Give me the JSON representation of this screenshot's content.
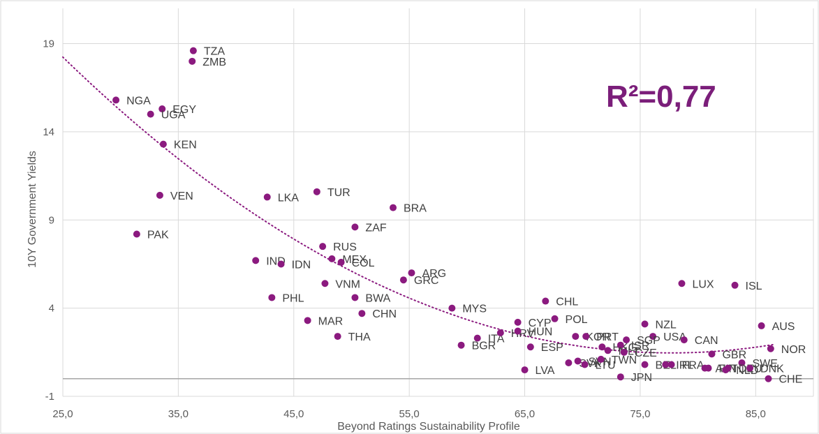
{
  "colors": {
    "marker": "#8b1a7f",
    "trendline": "#8b1a7f",
    "annotation": "#7b1e7a",
    "grid": "#d9d9d9"
  },
  "chart_data": {
    "type": "scatter",
    "xlabel": "Beyond Ratings Sustainability Profile",
    "ylabel": "10Y Government Yields",
    "xlim": [
      25,
      90
    ],
    "ylim": [
      -1,
      21
    ],
    "x_ticks": [
      25,
      35,
      45,
      55,
      65,
      75,
      85
    ],
    "x_tick_labels": [
      "25,0",
      "35,0",
      "45,0",
      "55,0",
      "65,0",
      "75,0",
      "85,0"
    ],
    "y_ticks": [
      -1,
      4,
      9,
      14,
      19
    ],
    "y_tick_labels": [
      "-1",
      "4",
      "9",
      "14",
      "19"
    ],
    "grid": true,
    "zero_line": true,
    "annotation": "R²=0,77",
    "trendline": {
      "type": "polynomial",
      "color": "#8b1a7f",
      "style": "dotted"
    },
    "points": [
      {
        "label": "TZA",
        "x": 36.3,
        "y": 18.6
      },
      {
        "label": "ZMB",
        "x": 36.2,
        "y": 18.0
      },
      {
        "label": "NGA",
        "x": 29.6,
        "y": 15.8
      },
      {
        "label": "EGY",
        "x": 33.6,
        "y": 15.3
      },
      {
        "label": "UGA",
        "x": 32.6,
        "y": 15.0
      },
      {
        "label": "KEN",
        "x": 33.7,
        "y": 13.3
      },
      {
        "label": "VEN",
        "x": 33.4,
        "y": 10.4
      },
      {
        "label": "PAK",
        "x": 31.4,
        "y": 8.2
      },
      {
        "label": "LKA",
        "x": 42.7,
        "y": 10.3
      },
      {
        "label": "TUR",
        "x": 47.0,
        "y": 10.6
      },
      {
        "label": "BRA",
        "x": 53.6,
        "y": 9.7
      },
      {
        "label": "ZAF",
        "x": 50.3,
        "y": 8.6
      },
      {
        "label": "RUS",
        "x": 47.5,
        "y": 7.5
      },
      {
        "label": "MEX",
        "x": 48.3,
        "y": 6.8
      },
      {
        "label": "COL",
        "x": 49.1,
        "y": 6.6
      },
      {
        "label": "IND",
        "x": 41.7,
        "y": 6.7
      },
      {
        "label": "IDN",
        "x": 43.9,
        "y": 6.5
      },
      {
        "label": "ARG",
        "x": 55.2,
        "y": 6.0
      },
      {
        "label": "GRC",
        "x": 54.5,
        "y": 5.6
      },
      {
        "label": "VNM",
        "x": 47.7,
        "y": 5.4
      },
      {
        "label": "PHL",
        "x": 43.1,
        "y": 4.6
      },
      {
        "label": "BWA",
        "x": 50.3,
        "y": 4.6
      },
      {
        "label": "MYS",
        "x": 58.7,
        "y": 4.0
      },
      {
        "label": "CHN",
        "x": 50.9,
        "y": 3.7
      },
      {
        "label": "MAR",
        "x": 46.2,
        "y": 3.3
      },
      {
        "label": "THA",
        "x": 48.8,
        "y": 2.4
      },
      {
        "label": "BGR",
        "x": 59.5,
        "y": 1.9
      },
      {
        "label": "ITA",
        "x": 60.9,
        "y": 2.3
      },
      {
        "label": "HRV",
        "x": 62.9,
        "y": 2.6
      },
      {
        "label": "CYP",
        "x": 64.4,
        "y": 3.2
      },
      {
        "label": "HUN",
        "x": 64.4,
        "y": 2.7
      },
      {
        "label": "CHL",
        "x": 66.8,
        "y": 4.4
      },
      {
        "label": "POL",
        "x": 67.6,
        "y": 3.4
      },
      {
        "label": "ESP",
        "x": 65.5,
        "y": 1.8
      },
      {
        "label": "LVA",
        "x": 65.0,
        "y": 0.5
      },
      {
        "label": "KOR",
        "x": 69.4,
        "y": 2.4
      },
      {
        "label": "PRT",
        "x": 70.3,
        "y": 2.4
      },
      {
        "label": "SVK",
        "x": 68.8,
        "y": 0.9
      },
      {
        "label": "SVN",
        "x": 69.6,
        "y": 1.0
      },
      {
        "label": "LTU",
        "x": 70.2,
        "y": 0.8
      },
      {
        "label": "NZL",
        "x": 75.4,
        "y": 3.1
      },
      {
        "label": "USA",
        "x": 76.1,
        "y": 2.4
      },
      {
        "label": "SGP",
        "x": 73.8,
        "y": 2.2
      },
      {
        "label": "HKG",
        "x": 71.7,
        "y": 1.8
      },
      {
        "label": "ISR",
        "x": 73.3,
        "y": 1.9
      },
      {
        "label": "MLT",
        "x": 72.2,
        "y": 1.6
      },
      {
        "label": "CZE",
        "x": 73.6,
        "y": 1.5
      },
      {
        "label": "TWN",
        "x": 71.6,
        "y": 1.1
      },
      {
        "label": "JPN",
        "x": 73.3,
        "y": 0.1
      },
      {
        "label": "BEL",
        "x": 75.4,
        "y": 0.8
      },
      {
        "label": "FRA",
        "x": 77.7,
        "y": 0.8
      },
      {
        "label": "IRL",
        "x": 77.2,
        "y": 0.8
      },
      {
        "label": "CAN",
        "x": 78.8,
        "y": 2.2
      },
      {
        "label": "LUX",
        "x": 78.6,
        "y": 5.4
      },
      {
        "label": "ISL",
        "x": 83.2,
        "y": 5.3
      },
      {
        "label": "AUS",
        "x": 85.5,
        "y": 3.0
      },
      {
        "label": "NOR",
        "x": 86.3,
        "y": 1.7
      },
      {
        "label": "GBR",
        "x": 81.2,
        "y": 1.4
      },
      {
        "label": "SWE",
        "x": 83.8,
        "y": 0.9
      },
      {
        "label": "AUT",
        "x": 80.6,
        "y": 0.6
      },
      {
        "label": "FIN",
        "x": 80.9,
        "y": 0.6
      },
      {
        "label": "NLD",
        "x": 82.4,
        "y": 0.5
      },
      {
        "label": "DEU",
        "x": 82.6,
        "y": 0.6
      },
      {
        "label": "DNK",
        "x": 84.5,
        "y": 0.6
      },
      {
        "label": "CHE",
        "x": 86.1,
        "y": 0.0
      }
    ]
  }
}
